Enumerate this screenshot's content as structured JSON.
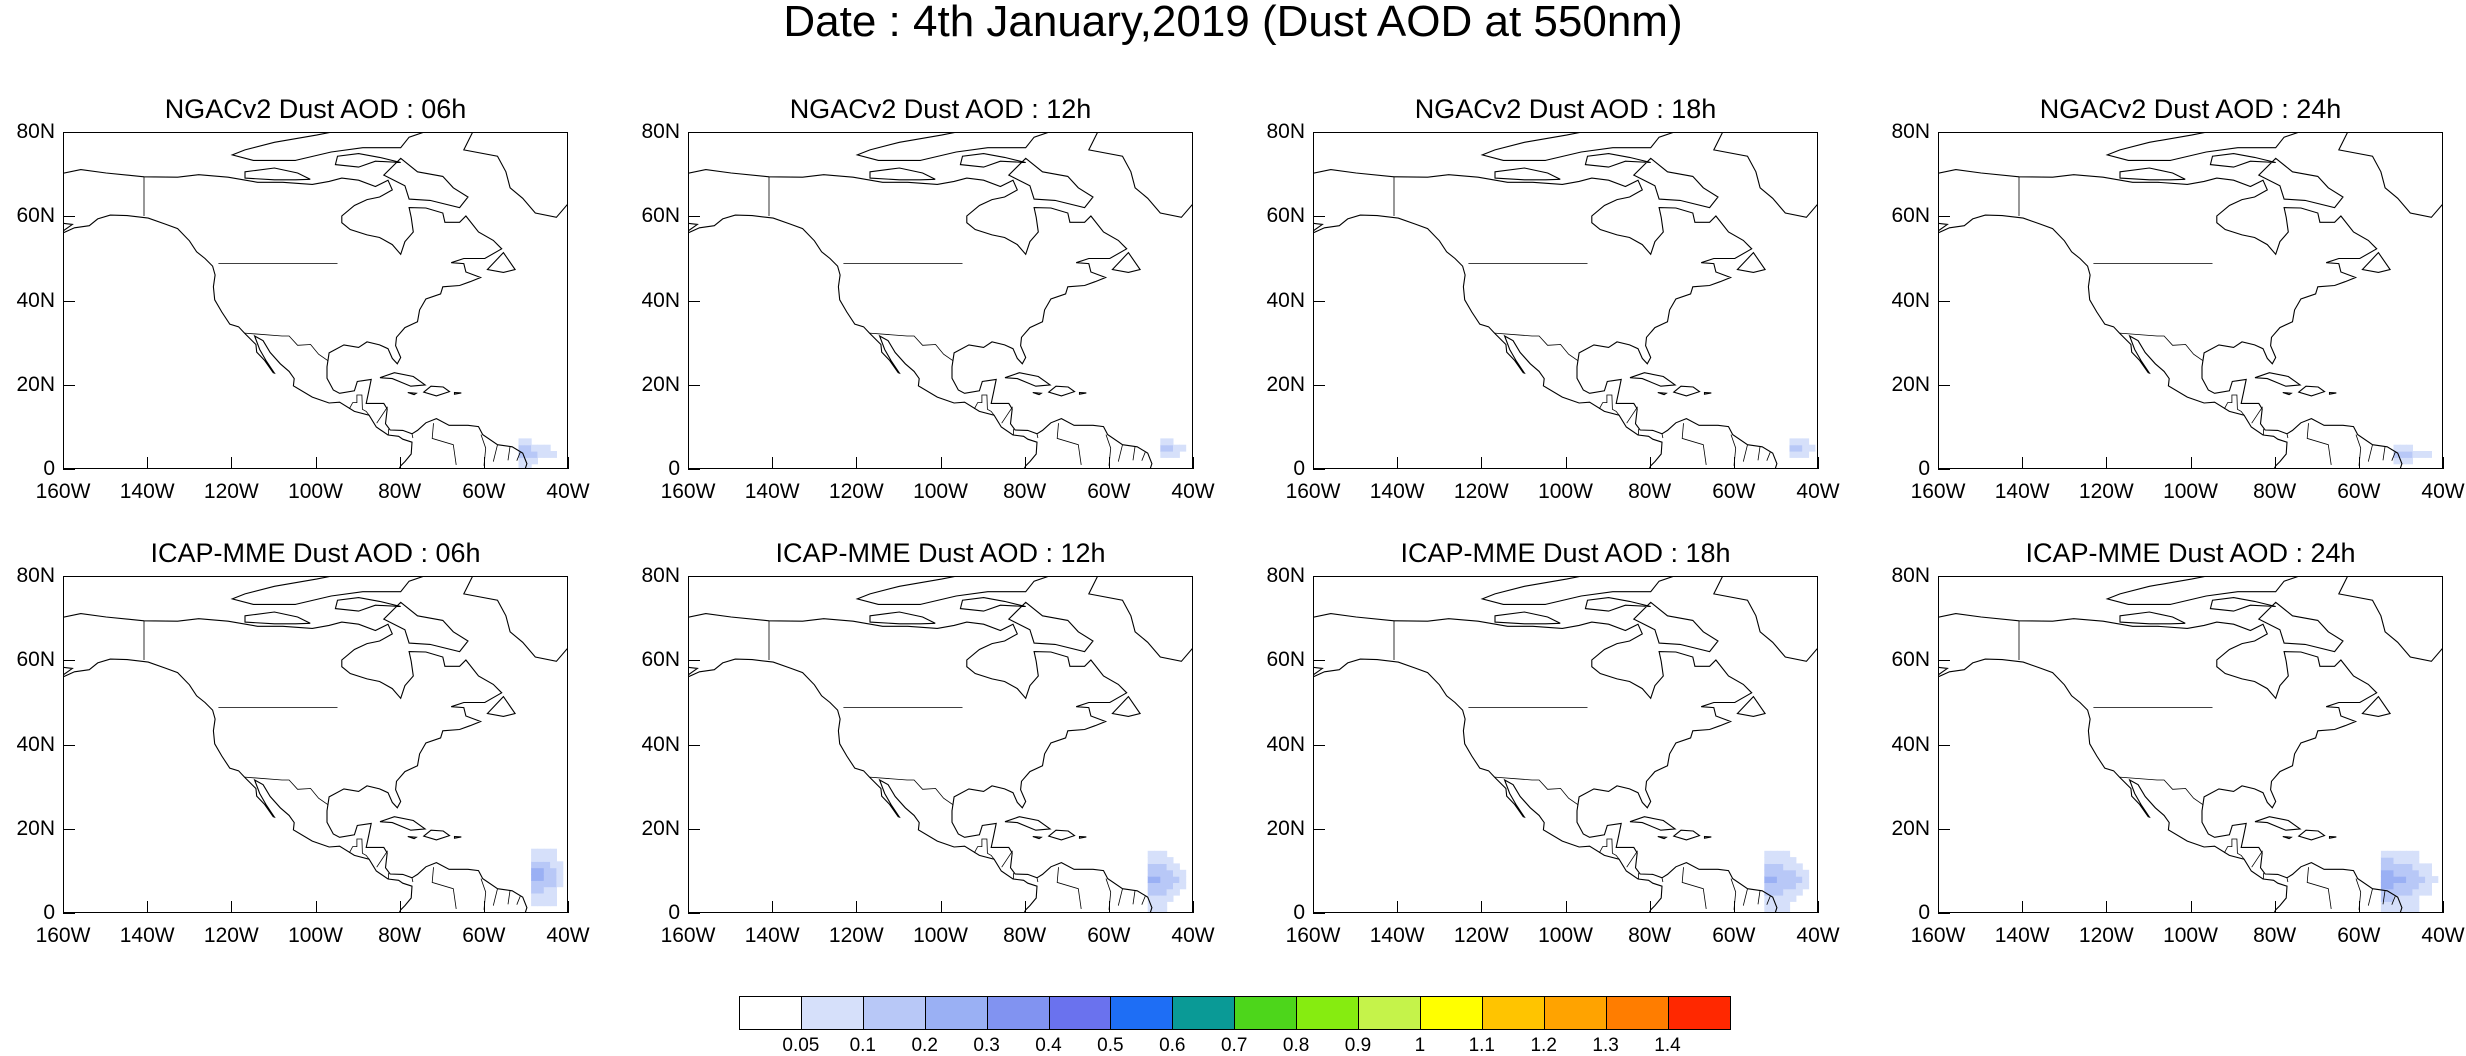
{
  "title": "Date : 4th January,2019 (Dust AOD at 550nm)",
  "panels": [
    {
      "title": "NGACv2 Dust AOD : 06h"
    },
    {
      "title": "NGACv2 Dust AOD : 12h"
    },
    {
      "title": "NGACv2 Dust AOD : 18h"
    },
    {
      "title": "NGACv2 Dust AOD : 24h"
    },
    {
      "title": "ICAP-MME Dust AOD : 06h"
    },
    {
      "title": "ICAP-MME Dust AOD : 12h"
    },
    {
      "title": "ICAP-MME Dust AOD : 18h"
    },
    {
      "title": "ICAP-MME Dust AOD : 24h"
    }
  ],
  "axes": {
    "x_ticks": [
      "160W",
      "140W",
      "120W",
      "100W",
      "80W",
      "60W",
      "40W"
    ],
    "y_ticks": [
      "80N",
      "60N",
      "40N",
      "20N",
      "0"
    ],
    "lon_range": [
      -160,
      -40
    ],
    "lat_range": [
      0,
      80
    ]
  },
  "colorbar": {
    "labels": [
      "0.05",
      "0.1",
      "0.2",
      "0.3",
      "0.4",
      "0.5",
      "0.6",
      "0.7",
      "0.8",
      "0.9",
      "1",
      "1.1",
      "1.2",
      "1.3",
      "1.4"
    ],
    "colors": [
      "#ffffff",
      "#d6e0fa",
      "#b8c8f7",
      "#9ab0f4",
      "#8193f1",
      "#6a72ee",
      "#1e6ef5",
      "#0a9a96",
      "#4dd61b",
      "#86ec10",
      "#c5f34a",
      "#ffff00",
      "#ffc400",
      "#ffa300",
      "#ff7d00",
      "#ff2800"
    ]
  },
  "chart_data": [
    {
      "type": "heatmap",
      "title": "NGACv2 Dust AOD : 06h",
      "xlim": [
        -160,
        -40
      ],
      "ylim": [
        0,
        80
      ],
      "dust_max_aod": 0.15,
      "dust_region_lon": [
        -52,
        -40
      ],
      "dust_region_lat": [
        0,
        7
      ]
    },
    {
      "type": "heatmap",
      "title": "NGACv2 Dust AOD : 12h",
      "xlim": [
        -160,
        -40
      ],
      "ylim": [
        0,
        80
      ],
      "dust_max_aod": 0.12,
      "dust_region_lon": [
        -48,
        -40
      ],
      "dust_region_lat": [
        0,
        8
      ]
    },
    {
      "type": "heatmap",
      "title": "NGACv2 Dust AOD : 18h",
      "xlim": [
        -160,
        -40
      ],
      "ylim": [
        0,
        80
      ],
      "dust_max_aod": 0.12,
      "dust_region_lon": [
        -47,
        -40
      ],
      "dust_region_lat": [
        0,
        9
      ]
    },
    {
      "type": "heatmap",
      "title": "NGACv2 Dust AOD : 24h",
      "xlim": [
        -160,
        -40
      ],
      "ylim": [
        0,
        80
      ],
      "dust_max_aod": 0.12,
      "dust_region_lon": [
        -52,
        -40
      ],
      "dust_region_lat": [
        0,
        6
      ]
    },
    {
      "type": "heatmap",
      "title": "ICAP-MME Dust AOD : 06h",
      "xlim": [
        -160,
        -40
      ],
      "ylim": [
        0,
        80
      ],
      "dust_max_aod": 0.25,
      "dust_region_lon": [
        -49,
        -40
      ],
      "dust_region_lat": [
        2,
        15
      ]
    },
    {
      "type": "heatmap",
      "title": "ICAP-MME Dust AOD : 12h",
      "xlim": [
        -160,
        -40
      ],
      "ylim": [
        0,
        80
      ],
      "dust_max_aod": 0.2,
      "dust_region_lon": [
        -51,
        -40
      ],
      "dust_region_lat": [
        0,
        15
      ]
    },
    {
      "type": "heatmap",
      "title": "ICAP-MME Dust AOD : 18h",
      "xlim": [
        -160,
        -40
      ],
      "ylim": [
        0,
        80
      ],
      "dust_max_aod": 0.2,
      "dust_region_lon": [
        -53,
        -40
      ],
      "dust_region_lat": [
        0,
        15
      ]
    },
    {
      "type": "heatmap",
      "title": "ICAP-MME Dust AOD : 24h",
      "xlim": [
        -160,
        -40
      ],
      "ylim": [
        0,
        80
      ],
      "dust_max_aod": 0.25,
      "dust_region_lon": [
        -55,
        -40
      ],
      "dust_region_lat": [
        0,
        15
      ]
    }
  ]
}
